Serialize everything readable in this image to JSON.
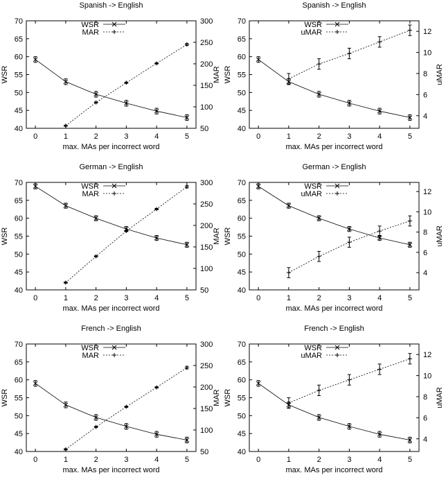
{
  "chart_data": [
    {
      "type": "line",
      "title": "Spanish -> English",
      "xlabel": "max. MAs per incorrect word",
      "ylabel_left": "WSR",
      "ylabel_right": "MAR",
      "xlim": [
        -0.3,
        5.3
      ],
      "ylim_left": [
        40,
        70
      ],
      "ylim_right": [
        50,
        300
      ],
      "xticks": [
        0,
        1,
        2,
        3,
        4,
        5
      ],
      "yticks_left": [
        40,
        45,
        50,
        55,
        60,
        65,
        70
      ],
      "yticks_right": [
        50,
        100,
        150,
        200,
        250,
        300
      ],
      "legend_position": "top-center",
      "series": [
        {
          "name": "WSR",
          "axis": "left",
          "marker": "x",
          "line": "solid",
          "x": [
            0,
            1,
            2,
            3,
            4,
            5
          ],
          "values": [
            59.2,
            53.0,
            49.5,
            47.0,
            44.8,
            43.0
          ],
          "err": [
            0.8,
            0.8,
            0.8,
            0.8,
            0.8,
            0.8
          ]
        },
        {
          "name": "MAR",
          "axis": "right",
          "marker": "+",
          "line": "dashed",
          "x": [
            1,
            2,
            3,
            4,
            5
          ],
          "values": [
            56,
            110,
            156,
            201,
            245
          ],
          "err": [
            1.5,
            1.5,
            1.5,
            1.5,
            2.5
          ]
        }
      ]
    },
    {
      "type": "line",
      "title": "Spanish -> English",
      "xlabel": "max. MAs per incorrect word",
      "ylabel_left": "WSR",
      "ylabel_right": "uMAR",
      "xlim": [
        -0.3,
        5.3
      ],
      "ylim_left": [
        40,
        70
      ],
      "ylim_right": [
        2.8,
        13.0
      ],
      "xticks": [
        0,
        1,
        2,
        3,
        4,
        5
      ],
      "yticks_left": [
        40,
        45,
        50,
        55,
        60,
        65,
        70
      ],
      "yticks_right": [
        4,
        6,
        8,
        10,
        12
      ],
      "legend_position": "top-center",
      "series": [
        {
          "name": "WSR",
          "axis": "left",
          "marker": "x",
          "line": "solid",
          "x": [
            0,
            1,
            2,
            3,
            4,
            5
          ],
          "values": [
            59.2,
            53.0,
            49.5,
            47.0,
            44.8,
            43.0
          ],
          "err": [
            0.8,
            0.8,
            0.8,
            0.8,
            0.8,
            0.8
          ]
        },
        {
          "name": "uMAR",
          "axis": "right",
          "marker": "+",
          "line": "dashed",
          "x": [
            1,
            2,
            3,
            4,
            5
          ],
          "values": [
            7.5,
            8.9,
            9.9,
            11.0,
            12.1
          ],
          "err": [
            0.5,
            0.5,
            0.5,
            0.5,
            0.5
          ]
        }
      ]
    },
    {
      "type": "line",
      "title": "German -> English",
      "xlabel": "max. MAs per incorrect word",
      "ylabel_left": "WSR",
      "ylabel_right": "MAR",
      "xlim": [
        -0.3,
        5.3
      ],
      "ylim_left": [
        40,
        70
      ],
      "ylim_right": [
        50,
        300
      ],
      "xticks": [
        0,
        1,
        2,
        3,
        4,
        5
      ],
      "yticks_left": [
        40,
        45,
        50,
        55,
        60,
        65,
        70
      ],
      "yticks_right": [
        50,
        100,
        150,
        200,
        250,
        300
      ],
      "legend_position": "top-center",
      "series": [
        {
          "name": "WSR",
          "axis": "left",
          "marker": "x",
          "line": "solid",
          "x": [
            0,
            1,
            2,
            3,
            4,
            5
          ],
          "values": [
            68.9,
            63.5,
            60.0,
            57.0,
            54.5,
            52.6
          ],
          "err": [
            0.7,
            0.7,
            0.7,
            0.7,
            0.7,
            0.7
          ]
        },
        {
          "name": "MAR",
          "axis": "right",
          "marker": "+",
          "line": "dashed",
          "x": [
            1,
            2,
            3,
            4,
            5
          ],
          "values": [
            67,
            128,
            187,
            238,
            290
          ],
          "err": [
            1.5,
            1.5,
            1.5,
            1.5,
            3
          ]
        }
      ]
    },
    {
      "type": "line",
      "title": "German -> English",
      "xlabel": "max. MAs per incorrect word",
      "ylabel_left": "WSR",
      "ylabel_right": "uMAR",
      "xlim": [
        -0.3,
        5.3
      ],
      "ylim_left": [
        40,
        70
      ],
      "ylim_right": [
        2.3,
        12.9
      ],
      "xticks": [
        0,
        1,
        2,
        3,
        4,
        5
      ],
      "yticks_left": [
        40,
        45,
        50,
        55,
        60,
        65,
        70
      ],
      "yticks_right": [
        4,
        6,
        8,
        10,
        12
      ],
      "legend_position": "top-center",
      "series": [
        {
          "name": "WSR",
          "axis": "left",
          "marker": "x",
          "line": "solid",
          "x": [
            0,
            1,
            2,
            3,
            4,
            5
          ],
          "values": [
            68.9,
            63.5,
            60.0,
            57.0,
            54.5,
            52.6
          ],
          "err": [
            0.7,
            0.7,
            0.7,
            0.7,
            0.7,
            0.7
          ]
        },
        {
          "name": "uMAR",
          "axis": "right",
          "marker": "+",
          "line": "dashed",
          "x": [
            1,
            2,
            3,
            4,
            5
          ],
          "values": [
            4.0,
            5.6,
            7.0,
            8.1,
            9.1
          ],
          "err": [
            0.5,
            0.5,
            0.5,
            0.5,
            0.5
          ]
        }
      ]
    },
    {
      "type": "line",
      "title": "French -> English",
      "xlabel": "max. MAs per incorrect word",
      "ylabel_left": "WSR",
      "ylabel_right": "MAR",
      "xlim": [
        -0.3,
        5.3
      ],
      "ylim_left": [
        40,
        70
      ],
      "ylim_right": [
        50,
        300
      ],
      "xticks": [
        0,
        1,
        2,
        3,
        4,
        5
      ],
      "yticks_left": [
        40,
        45,
        50,
        55,
        60,
        65,
        70
      ],
      "yticks_right": [
        50,
        100,
        150,
        200,
        250,
        300
      ],
      "legend_position": "top-center",
      "series": [
        {
          "name": "WSR",
          "axis": "left",
          "marker": "x",
          "line": "solid",
          "x": [
            0,
            1,
            2,
            3,
            4,
            5
          ],
          "values": [
            59.0,
            53.0,
            49.5,
            47.0,
            44.8,
            43.2
          ],
          "err": [
            0.8,
            0.8,
            0.8,
            0.8,
            0.8,
            0.8
          ]
        },
        {
          "name": "MAR",
          "axis": "right",
          "marker": "+",
          "line": "dashed",
          "x": [
            1,
            2,
            3,
            4,
            5
          ],
          "values": [
            55,
            107,
            154,
            199,
            245
          ],
          "err": [
            1.5,
            1.5,
            1.5,
            1.5,
            3
          ]
        }
      ]
    },
    {
      "type": "line",
      "title": "French -> English",
      "xlabel": "max. MAs per incorrect word",
      "ylabel_left": "WSR",
      "ylabel_right": "uMAR",
      "xlim": [
        -0.3,
        5.3
      ],
      "ylim_left": [
        40,
        70
      ],
      "ylim_right": [
        2.8,
        13.0
      ],
      "xticks": [
        0,
        1,
        2,
        3,
        4,
        5
      ],
      "yticks_left": [
        40,
        45,
        50,
        55,
        60,
        65,
        70
      ],
      "yticks_right": [
        4,
        6,
        8,
        10,
        12
      ],
      "legend_position": "top-center",
      "series": [
        {
          "name": "WSR",
          "axis": "left",
          "marker": "x",
          "line": "solid",
          "x": [
            0,
            1,
            2,
            3,
            4,
            5
          ],
          "values": [
            59.0,
            53.0,
            49.5,
            47.0,
            44.8,
            43.2
          ],
          "err": [
            0.8,
            0.8,
            0.8,
            0.8,
            0.8,
            0.8
          ]
        },
        {
          "name": "uMAR",
          "axis": "right",
          "marker": "+",
          "line": "dashed",
          "x": [
            1,
            2,
            3,
            4,
            5
          ],
          "values": [
            7.4,
            8.6,
            9.6,
            10.6,
            11.6
          ],
          "err": [
            0.5,
            0.5,
            0.5,
            0.5,
            0.5
          ]
        }
      ]
    }
  ]
}
